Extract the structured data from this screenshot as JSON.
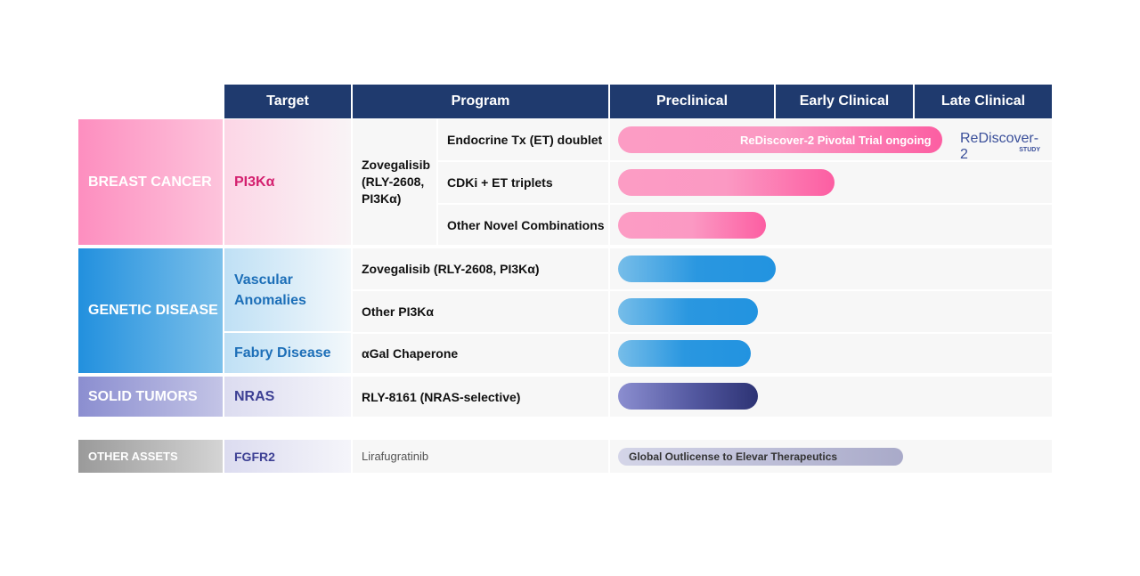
{
  "header": {
    "target": "Target",
    "program": "Program",
    "phases": [
      "Preclinical",
      "Early Clinical",
      "Late Clinical"
    ]
  },
  "colors": {
    "header": "#1f3a6e",
    "breast": "#fc7fb5",
    "genetic": "#2a97e0",
    "solid": "#8b8ed0",
    "other": "#a8a8a8"
  },
  "breast": {
    "category": "BREAST CANCER",
    "target": "PI3Kα",
    "program": "Zovegalisib (RLY-2608, PI3Kα)",
    "rows": [
      {
        "indication": "Endocrine Tx (ET) doublet",
        "progress_phase": 2.2,
        "bar_label": "ReDiscover-2 Pivotal Trial ongoing",
        "logo": {
          "text": "ReDiscover-2",
          "sub": "STUDY"
        }
      },
      {
        "indication": "CDKi + ET triplets",
        "progress_phase": 1.43
      },
      {
        "indication": "Other Novel Combinations",
        "progress_phase": 0.95
      }
    ]
  },
  "genetic": {
    "category": "GENETIC DISEASE",
    "targets": [
      "Vascular Anomalies",
      "Fabry Disease"
    ],
    "rows": [
      {
        "program": "Zovegalisib (RLY-2608, PI3Kα)",
        "progress_phase": 1.0
      },
      {
        "program": "Other PI3Kα",
        "progress_phase": 0.9
      },
      {
        "program": "αGal Chaperone",
        "progress_phase": 0.86
      }
    ]
  },
  "solid": {
    "category": "SOLID TUMORS",
    "target": "NRAS",
    "program": "RLY-8161 (NRAS-selective)",
    "progress_phase": 0.9
  },
  "other": {
    "category": "OTHER ASSETS",
    "target": "FGFR2",
    "program": "Lirafugratinib",
    "progress_phase": 1.93,
    "bar_label": "Global Outlicense to Elevar Therapeutics"
  }
}
